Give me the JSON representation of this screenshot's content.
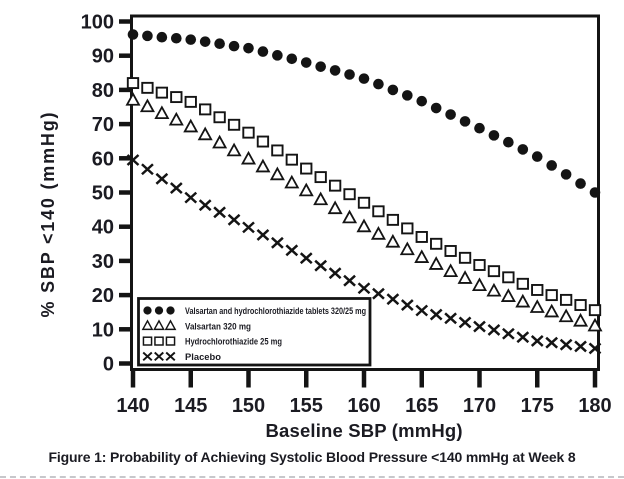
{
  "figure": {
    "caption": "Figure 1: Probability of Achieving Systolic Blood Pressure <140 mmHg at Week 8"
  },
  "chart_data": {
    "type": "scatter",
    "title": "Figure 1: Probability of Achieving Systolic Blood Pressure <140 mmHg at Week 8",
    "xlabel": "Baseline SBP (mmHg)",
    "ylabel": "% SBP <140 (mmHg)",
    "xlim": [
      140,
      180
    ],
    "ylim": [
      0,
      100
    ],
    "x_ticks": [
      140,
      145,
      150,
      155,
      160,
      165,
      170,
      175,
      180
    ],
    "y_ticks": [
      0,
      10,
      20,
      30,
      40,
      50,
      60,
      70,
      80,
      90,
      100
    ],
    "grid": false,
    "legend_position": "inside-bottom-left",
    "x_start": 140,
    "x_step": 1.25,
    "series": [
      {
        "name": "Valsartan and hydrochlorothiazide tablets 320/25 mg",
        "marker": "filled-circle",
        "values": [
          96.2,
          95.8,
          95.4,
          95.1,
          94.7,
          94.1,
          93.5,
          92.8,
          92.2,
          91.2,
          90.1,
          89.1,
          88.0,
          86.8,
          85.7,
          84.5,
          83.3,
          81.7,
          80.0,
          78.4,
          76.7,
          74.7,
          72.8,
          70.8,
          68.8,
          66.7,
          64.7,
          62.6,
          60.5,
          57.9,
          55.3,
          52.6,
          50.0
        ]
      },
      {
        "name": "Valsartan 320 mg",
        "marker": "open-triangle",
        "values": [
          77.0,
          75.1,
          73.1,
          71.2,
          69.2,
          66.9,
          64.5,
          62.2,
          59.8,
          57.5,
          55.2,
          52.8,
          50.5,
          47.9,
          45.3,
          42.6,
          40.0,
          37.8,
          35.5,
          33.3,
          31.0,
          29.0,
          26.9,
          24.9,
          22.8,
          21.2,
          19.6,
          18.0,
          16.4,
          15.1,
          13.7,
          12.4,
          11.0
        ]
      },
      {
        "name": "Hydrochlorothiazide 25 mg",
        "marker": "open-square",
        "values": [
          82.0,
          80.6,
          79.2,
          77.9,
          76.5,
          74.3,
          72.0,
          69.8,
          67.5,
          64.9,
          62.3,
          59.6,
          57.0,
          54.5,
          52.0,
          49.5,
          47.0,
          44.5,
          42.0,
          39.5,
          37.0,
          35.0,
          32.9,
          30.9,
          28.8,
          27.0,
          25.2,
          23.3,
          21.5,
          20.0,
          18.6,
          17.1,
          15.6
        ]
      },
      {
        "name": "Placebo",
        "marker": "x-cross",
        "values": [
          59.5,
          56.8,
          54.0,
          51.3,
          48.5,
          46.3,
          44.2,
          42.0,
          39.8,
          37.6,
          35.3,
          33.1,
          30.8,
          28.6,
          26.4,
          24.2,
          22.0,
          20.4,
          18.8,
          17.1,
          15.5,
          14.3,
          13.2,
          12.0,
          10.8,
          9.8,
          8.7,
          7.7,
          6.6,
          6.1,
          5.5,
          5.0,
          4.4
        ]
      }
    ],
    "colors": {
      "marker": "#141414",
      "axis": "#141414",
      "text": "#1b1b22",
      "background": "#ffffff"
    }
  }
}
